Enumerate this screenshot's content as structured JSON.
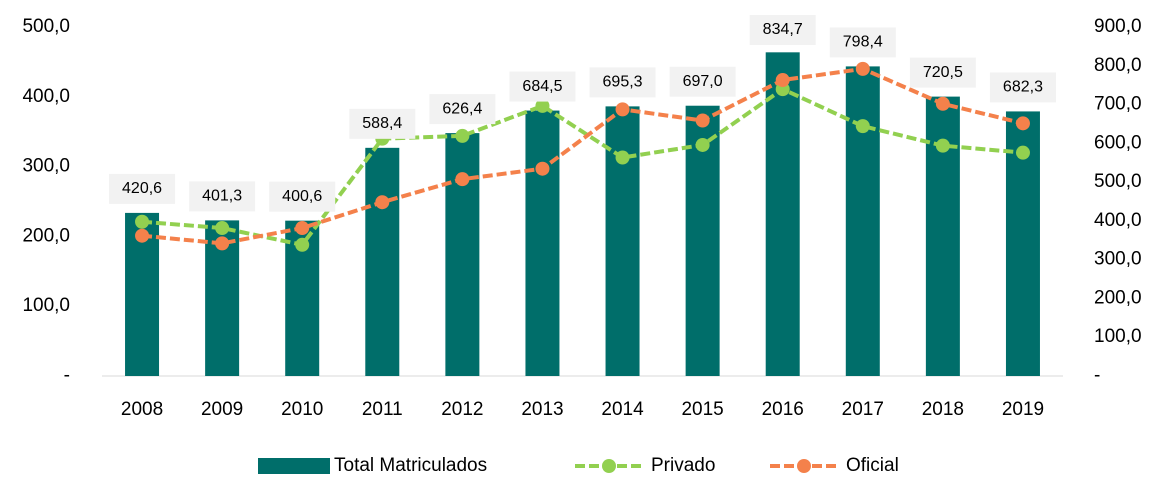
{
  "chart_data": {
    "type": "bar_line",
    "categories": [
      "2008",
      "2009",
      "2010",
      "2011",
      "2012",
      "2013",
      "2014",
      "2015",
      "2016",
      "2017",
      "2018",
      "2019"
    ],
    "series": [
      {
        "name": "Total Matriculados",
        "type": "bar",
        "axis": "y2",
        "color": "#006e6a",
        "values": [
          420.6,
          401.3,
          400.6,
          588.4,
          626.4,
          684.5,
          695.3,
          697.0,
          834.7,
          798.4,
          720.5,
          682.3
        ],
        "value_labels": [
          "420,6",
          "401,3",
          "400,6",
          "588,4",
          "626,4",
          "684,5",
          "695,3",
          "697,0",
          "834,7",
          "798,4",
          "720,5",
          "682,3"
        ]
      },
      {
        "name": "Privado",
        "type": "line",
        "axis": "y",
        "color": "#92d050",
        "values": [
          221,
          212,
          188,
          340,
          344,
          387,
          313,
          331,
          411,
          358,
          330,
          320
        ]
      },
      {
        "name": "Oficial",
        "type": "line",
        "axis": "y",
        "color": "#f4814b",
        "values": [
          201,
          190,
          212,
          249,
          282,
          297,
          382,
          366,
          424,
          440,
          390,
          362
        ]
      }
    ],
    "ylim": [
      0,
      500
    ],
    "yticks": [
      {
        "value": 0,
        "label": "-"
      },
      {
        "value": 100,
        "label": "100,0"
      },
      {
        "value": 200,
        "label": "200,0"
      },
      {
        "value": 300,
        "label": "300,0"
      },
      {
        "value": 400,
        "label": "400,0"
      },
      {
        "value": 500,
        "label": "500,0"
      }
    ],
    "y2lim": [
      0,
      900
    ],
    "y2ticks": [
      {
        "value": 0,
        "label": "-"
      },
      {
        "value": 100,
        "label": "100,0"
      },
      {
        "value": 200,
        "label": "200,0"
      },
      {
        "value": 300,
        "label": "300,0"
      },
      {
        "value": 400,
        "label": "400,0"
      },
      {
        "value": 500,
        "label": "500,0"
      },
      {
        "value": 600,
        "label": "600,0"
      },
      {
        "value": 700,
        "label": "700,0"
      },
      {
        "value": 800,
        "label": "800,0"
      },
      {
        "value": 900,
        "label": "900,0"
      }
    ],
    "grid": false,
    "legend": "bottom"
  }
}
